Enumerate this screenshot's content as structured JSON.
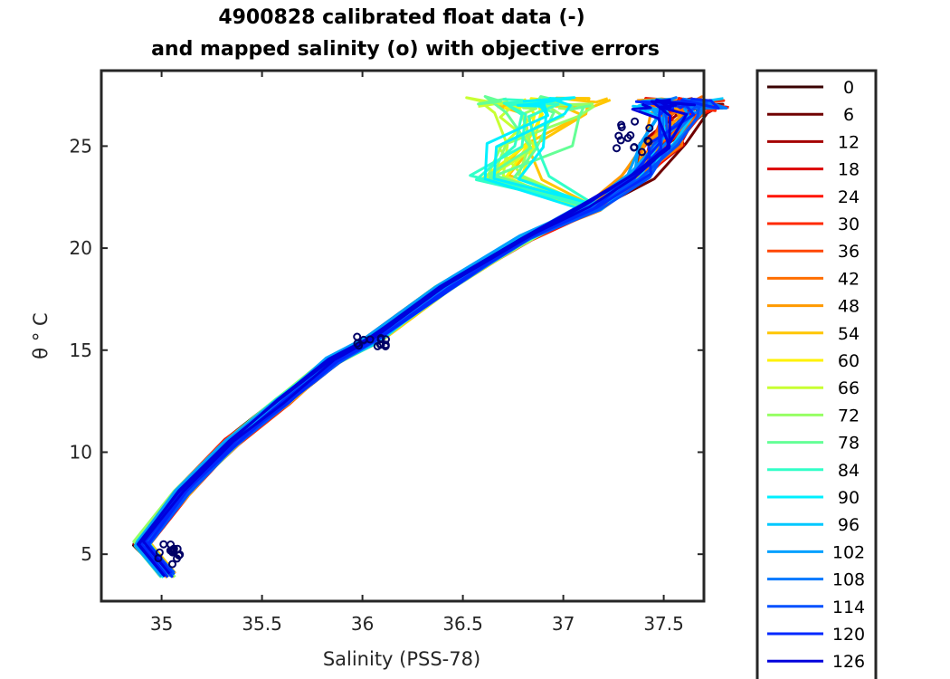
{
  "chart_data": {
    "type": "line",
    "title": "4900828 calibrated float data (-)",
    "subtitle": "and mapped salinity (o) with objective errors",
    "xlabel": "Salinity (PSS-78)",
    "ylabel": "θ ° C",
    "xlim": [
      34.7,
      37.7
    ],
    "ylim": [
      2.7,
      28.7
    ],
    "xticks": [
      "35",
      "35.5",
      "36",
      "36.5",
      "37",
      "37.5"
    ],
    "yticks": [
      "5",
      "10",
      "15",
      "20",
      "25"
    ],
    "grid": false,
    "legend_position": "outside-right",
    "legend": [
      "0",
      "6",
      "12",
      "18",
      "24",
      "30",
      "36",
      "42",
      "48",
      "54",
      "60",
      "66",
      "72",
      "78",
      "84",
      "90",
      "96",
      "102",
      "108",
      "114",
      "120",
      "126"
    ],
    "colors": [
      "#3a0000",
      "#700000",
      "#a50000",
      "#dc0000",
      "#ff1400",
      "#ff2a00",
      "#ff4600",
      "#ff6e00",
      "#ff9a00",
      "#ffc600",
      "#fff200",
      "#c8ff32",
      "#96ff64",
      "#64ff96",
      "#32ffc8",
      "#00f0ff",
      "#00c8ff",
      "#00a0ff",
      "#0078ff",
      "#0050ff",
      "#0028ff",
      "#0000dc"
    ],
    "base_profile": {
      "salinity": [
        35.03,
        34.9,
        35.1,
        35.35,
        35.6,
        35.85,
        36.05,
        36.4,
        36.8,
        37.1,
        37.3,
        37.4,
        37.45
      ],
      "theta": [
        4.0,
        5.5,
        8.0,
        10.5,
        12.5,
        14.5,
        15.5,
        18.0,
        20.5,
        22.0,
        23.5,
        25.0,
        26.5
      ]
    }
  }
}
